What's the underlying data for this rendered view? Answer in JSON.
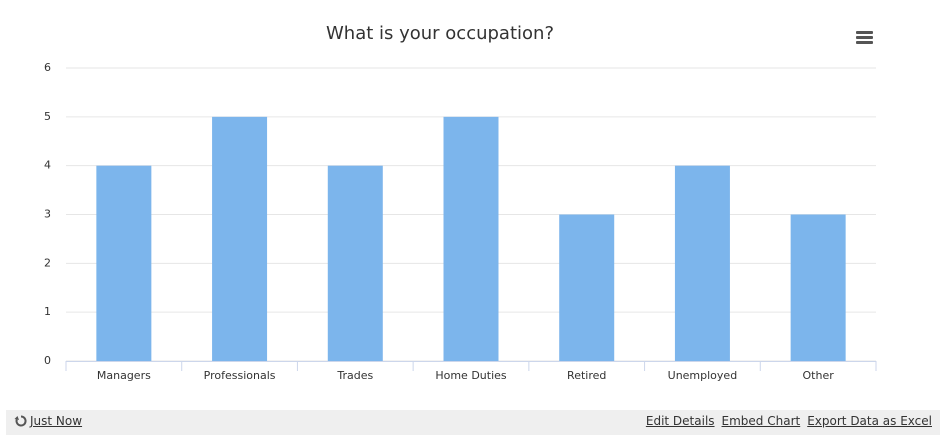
{
  "chart_data": {
    "type": "bar",
    "title": "What is your occupation?",
    "categories": [
      "Managers",
      "Professionals",
      "Trades",
      "Home Duties",
      "Retired",
      "Unemployed",
      "Other"
    ],
    "values": [
      4,
      5,
      4,
      5,
      3,
      4,
      3
    ],
    "color": "#7cb5ec",
    "ylim": [
      0,
      6
    ],
    "yticks": [
      0,
      1,
      2,
      3,
      4,
      5,
      6
    ],
    "grid": true
  },
  "footer": {
    "updated": "Just Now",
    "links": [
      "Edit Details",
      "Embed Chart",
      "Export Data as Excel"
    ]
  }
}
